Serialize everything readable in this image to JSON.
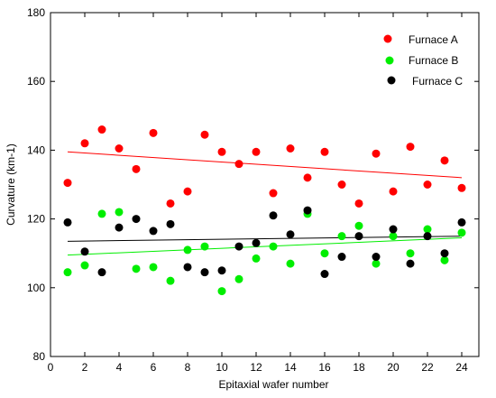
{
  "chart_data": {
    "type": "scatter",
    "title": "",
    "xlabel": "Epitaxial wafer number",
    "ylabel": "Curvature (km-1)",
    "xlim": [
      0,
      25
    ],
    "ylim": [
      80,
      180
    ],
    "xticks": [
      0,
      2,
      4,
      6,
      8,
      10,
      12,
      14,
      16,
      18,
      20,
      22,
      24
    ],
    "yticks": [
      80,
      100,
      120,
      140,
      160,
      180
    ],
    "grid": false,
    "legend_position": "top-right",
    "series": [
      {
        "name": "Furnace A",
        "color": "#ff0000",
        "x": [
          1,
          2,
          3,
          4,
          5,
          6,
          7,
          8,
          9,
          10,
          11,
          12,
          13,
          14,
          15,
          16,
          17,
          18,
          19,
          20,
          21,
          22,
          23,
          24
        ],
        "y": [
          130.5,
          142,
          146,
          140.5,
          134.5,
          145,
          124.5,
          128,
          144.5,
          139.5,
          136,
          139.5,
          127.5,
          140.5,
          132,
          139.5,
          130,
          124.5,
          139,
          128,
          141,
          130,
          137,
          129
        ],
        "trend": [
          139.5,
          132
        ]
      },
      {
        "name": "Furnace B",
        "color": "#00ee00",
        "x": [
          1,
          2,
          3,
          4,
          5,
          6,
          7,
          8,
          9,
          10,
          11,
          12,
          13,
          14,
          15,
          16,
          17,
          18,
          19,
          20,
          21,
          22,
          23,
          24
        ],
        "y": [
          104.5,
          106.5,
          121.5,
          122,
          105.5,
          106,
          102,
          111,
          112,
          99,
          102.5,
          108.5,
          112,
          107,
          121.5,
          110,
          115,
          118,
          107,
          115,
          110,
          117,
          108,
          116
        ],
        "trend": [
          109.5,
          114.5
        ]
      },
      {
        "name": "Furnace C",
        "color": "#000000",
        "x": [
          1,
          2,
          3,
          4,
          5,
          6,
          7,
          8,
          9,
          10,
          11,
          12,
          13,
          14,
          15,
          16,
          17,
          18,
          19,
          20,
          21,
          22,
          23,
          24
        ],
        "y": [
          119,
          110.5,
          104.5,
          117.5,
          120,
          116.5,
          118.5,
          106,
          104.5,
          105,
          112,
          113,
          121,
          115.5,
          122.5,
          104,
          109,
          115,
          109,
          117,
          107,
          115,
          110,
          119
        ],
        "trend": [
          113.5,
          115
        ]
      }
    ]
  }
}
